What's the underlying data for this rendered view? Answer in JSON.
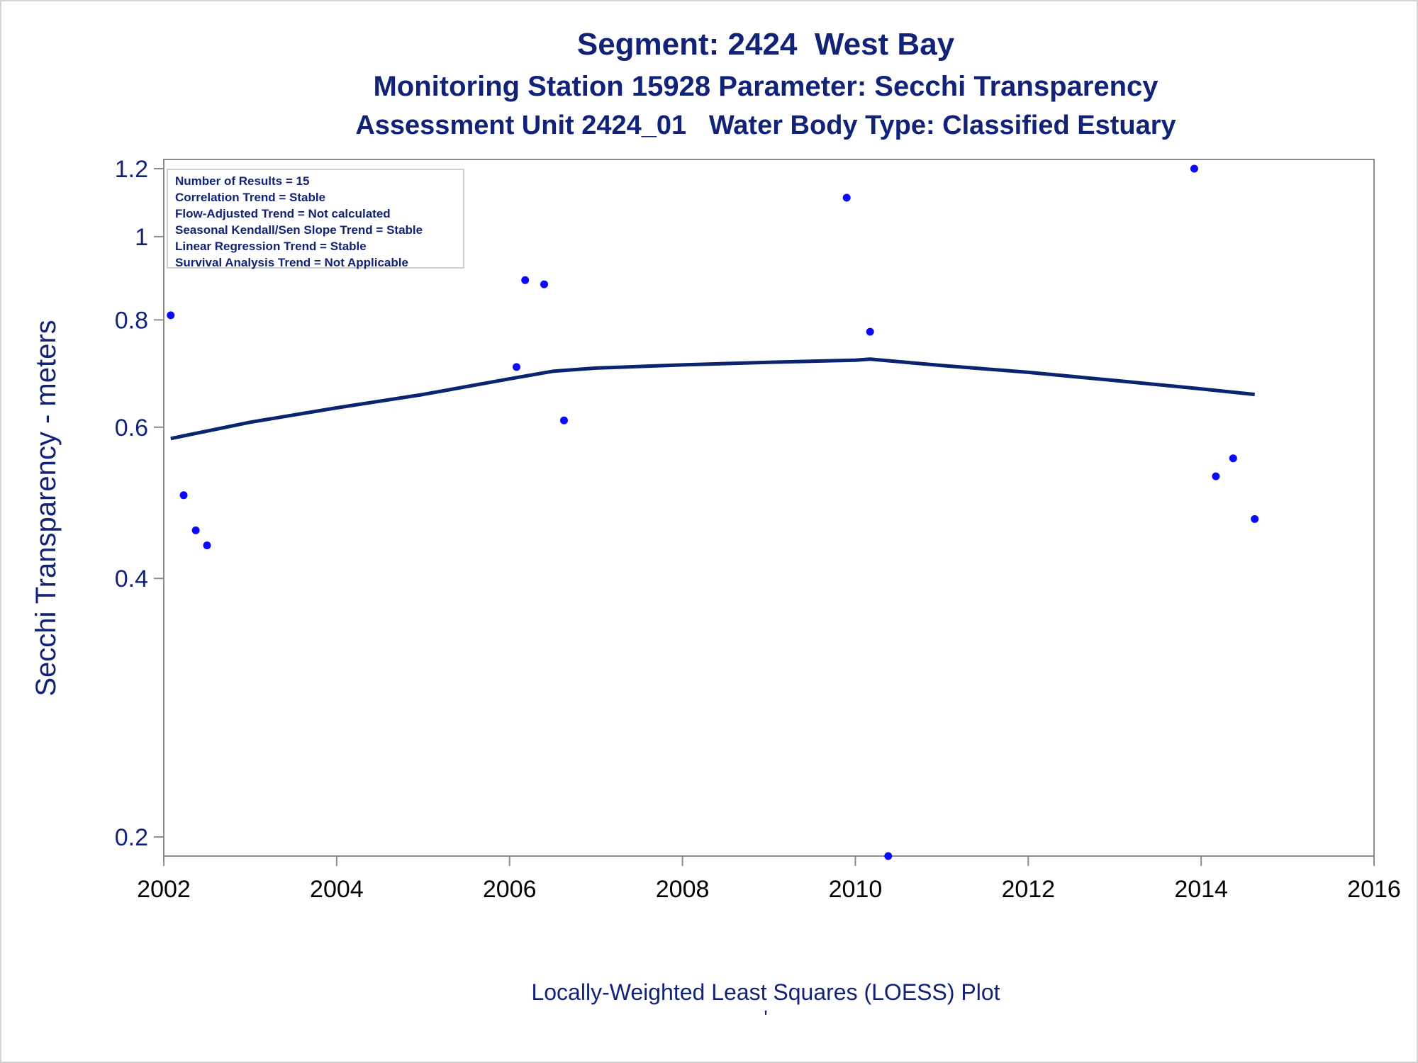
{
  "titles": {
    "line1": "Segment: 2424  West Bay",
    "line2": "Monitoring Station 15928 Parameter: Secchi Transparency",
    "line3": "Assessment Unit 2424_01   Water Body Type: Classified Estuary"
  },
  "stats": [
    "Number of Results = 15",
    "Correlation Trend = Stable",
    "Flow-Adjusted Trend = Not calculated",
    "Seasonal Kendall/Sen Slope Trend = Stable",
    "Linear Regression Trend = Stable",
    "Survival Analysis Trend = Not Applicable"
  ],
  "footnote": "Locally-Weighted Least Squares (LOESS) Plot",
  "footnote_mark": "'",
  "colors": {
    "title": "#112277",
    "points": "#0a0aff",
    "loess_line": "#0b2470",
    "axis": "#8c8c8c"
  },
  "chart_data": {
    "type": "scatter",
    "title": "Segment: 2424  West Bay",
    "xlabel": "",
    "ylabel": "Secchi Transparency - meters",
    "xlim": [
      2002,
      2016
    ],
    "ylim": [
      0.19,
      1.23
    ],
    "y_scale": "log",
    "grid": false,
    "x_ticks": [
      2002,
      2004,
      2006,
      2008,
      2010,
      2012,
      2014,
      2016
    ],
    "y_ticks": [
      0.2,
      0.4,
      0.6,
      0.8,
      1,
      1.2
    ],
    "series": [
      {
        "name": "",
        "kind": "points",
        "x": [
          2002.08,
          2002.23,
          2002.37,
          2002.5,
          2006.08,
          2006.18,
          2006.4,
          2006.63,
          2009.9,
          2010.17,
          2010.38,
          2013.92,
          2014.17,
          2014.37,
          2014.62
        ],
        "y": [
          0.81,
          0.5,
          0.455,
          0.437,
          0.705,
          0.89,
          0.88,
          0.611,
          1.11,
          0.775,
          0.19,
          1.2,
          0.526,
          0.552,
          0.469
        ]
      },
      {
        "name": "",
        "kind": "loess",
        "x": [
          2002.08,
          2003,
          2004,
          2005,
          2006,
          2006.5,
          2007,
          2008,
          2009,
          2010,
          2010.17,
          2011,
          2012,
          2013,
          2014,
          2014.62
        ],
        "y": [
          0.582,
          0.608,
          0.632,
          0.655,
          0.683,
          0.697,
          0.703,
          0.709,
          0.714,
          0.718,
          0.72,
          0.708,
          0.695,
          0.68,
          0.665,
          0.655
        ]
      }
    ]
  }
}
